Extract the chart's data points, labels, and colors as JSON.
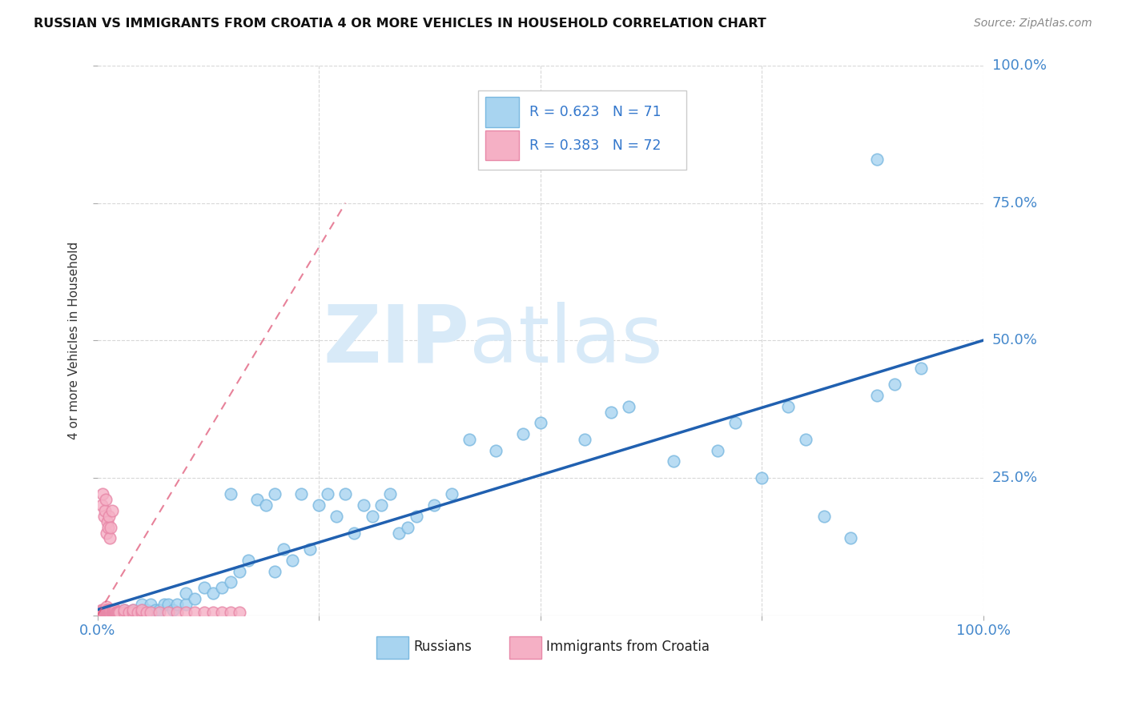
{
  "title": "RUSSIAN VS IMMIGRANTS FROM CROATIA 4 OR MORE VEHICLES IN HOUSEHOLD CORRELATION CHART",
  "source": "Source: ZipAtlas.com",
  "ylabel": "4 or more Vehicles in Household",
  "legend_R_blue": "R = 0.623",
  "legend_N_blue": "N = 71",
  "legend_R_pink": "R = 0.383",
  "legend_N_pink": "N = 72",
  "legend_label_blue": "Russians",
  "legend_label_pink": "Immigrants from Croatia",
  "watermark_zip": "ZIP",
  "watermark_atlas": "atlas",
  "blue_scatter_color": "#a8d4f0",
  "blue_scatter_edge": "#7ab8e0",
  "pink_scatter_color": "#f5b0c5",
  "pink_scatter_edge": "#e888a8",
  "blue_line_color": "#2060b0",
  "pink_line_color": "#e05878",
  "grid_color": "#d8d8d8",
  "tick_color": "#4488cc",
  "title_color": "#111111",
  "source_color": "#888888",
  "ylabel_color": "#333333",
  "legend_text_color": "#3377cc",
  "watermark_color": "#d8eaf8",
  "xlim": [
    0.0,
    1.0
  ],
  "ylim": [
    0.0,
    1.0
  ],
  "xtick_positions": [
    0.0,
    0.25,
    0.5,
    0.75,
    1.0
  ],
  "xtick_labels_show": [
    "0.0%",
    "",
    "",
    "",
    "100.0%"
  ],
  "ytick_positions": [
    0.0,
    0.25,
    0.5,
    0.75,
    1.0
  ],
  "ytick_labels_show": [
    "",
    "25.0%",
    "50.0%",
    "75.0%",
    "100.0%"
  ],
  "blue_x": [
    0.01,
    0.015,
    0.02,
    0.02,
    0.025,
    0.03,
    0.03,
    0.035,
    0.04,
    0.04,
    0.05,
    0.05,
    0.055,
    0.06,
    0.065,
    0.07,
    0.075,
    0.08,
    0.085,
    0.09,
    0.1,
    0.1,
    0.11,
    0.12,
    0.13,
    0.14,
    0.15,
    0.15,
    0.16,
    0.17,
    0.18,
    0.19,
    0.2,
    0.2,
    0.21,
    0.22,
    0.23,
    0.24,
    0.25,
    0.26,
    0.27,
    0.28,
    0.29,
    0.3,
    0.31,
    0.32,
    0.33,
    0.34,
    0.35,
    0.36,
    0.38,
    0.4,
    0.42,
    0.45,
    0.48,
    0.5,
    0.55,
    0.58,
    0.6,
    0.65,
    0.7,
    0.72,
    0.75,
    0.78,
    0.8,
    0.82,
    0.85,
    0.88,
    0.9,
    0.93,
    0.88
  ],
  "blue_y": [
    0.01,
    0.005,
    0.005,
    0.01,
    0.005,
    0.005,
    0.01,
    0.005,
    0.01,
    0.005,
    0.01,
    0.02,
    0.01,
    0.02,
    0.01,
    0.01,
    0.02,
    0.02,
    0.01,
    0.02,
    0.02,
    0.04,
    0.03,
    0.05,
    0.04,
    0.05,
    0.06,
    0.22,
    0.08,
    0.1,
    0.21,
    0.2,
    0.08,
    0.22,
    0.12,
    0.1,
    0.22,
    0.12,
    0.2,
    0.22,
    0.18,
    0.22,
    0.15,
    0.2,
    0.18,
    0.2,
    0.22,
    0.15,
    0.16,
    0.18,
    0.2,
    0.22,
    0.32,
    0.3,
    0.33,
    0.35,
    0.32,
    0.37,
    0.38,
    0.28,
    0.3,
    0.35,
    0.25,
    0.38,
    0.32,
    0.18,
    0.14,
    0.4,
    0.42,
    0.45,
    0.83
  ],
  "pink_x": [
    0.003,
    0.004,
    0.005,
    0.005,
    0.006,
    0.006,
    0.007,
    0.007,
    0.008,
    0.008,
    0.009,
    0.009,
    0.01,
    0.01,
    0.01,
    0.011,
    0.011,
    0.012,
    0.012,
    0.013,
    0.013,
    0.014,
    0.014,
    0.015,
    0.015,
    0.016,
    0.016,
    0.017,
    0.017,
    0.018,
    0.018,
    0.019,
    0.019,
    0.02,
    0.02,
    0.021,
    0.022,
    0.023,
    0.024,
    0.025,
    0.03,
    0.03,
    0.035,
    0.04,
    0.04,
    0.045,
    0.05,
    0.05,
    0.055,
    0.06,
    0.07,
    0.08,
    0.09,
    0.1,
    0.11,
    0.12,
    0.13,
    0.14,
    0.15,
    0.16,
    0.005,
    0.006,
    0.007,
    0.008,
    0.009,
    0.01,
    0.011,
    0.012,
    0.013,
    0.014,
    0.015,
    0.016
  ],
  "pink_y": [
    0.005,
    0.004,
    0.005,
    0.01,
    0.005,
    0.01,
    0.005,
    0.01,
    0.005,
    0.01,
    0.005,
    0.01,
    0.005,
    0.01,
    0.015,
    0.005,
    0.01,
    0.005,
    0.01,
    0.005,
    0.01,
    0.005,
    0.01,
    0.005,
    0.01,
    0.005,
    0.01,
    0.005,
    0.01,
    0.005,
    0.01,
    0.005,
    0.01,
    0.005,
    0.01,
    0.005,
    0.005,
    0.005,
    0.005,
    0.005,
    0.005,
    0.01,
    0.005,
    0.005,
    0.01,
    0.005,
    0.005,
    0.01,
    0.005,
    0.005,
    0.005,
    0.005,
    0.005,
    0.005,
    0.005,
    0.005,
    0.005,
    0.005,
    0.005,
    0.005,
    0.2,
    0.22,
    0.18,
    0.19,
    0.21,
    0.15,
    0.17,
    0.16,
    0.18,
    0.14,
    0.16,
    0.19
  ],
  "blue_line_x": [
    0.0,
    1.0
  ],
  "blue_line_y": [
    0.01,
    0.5
  ],
  "pink_line_x": [
    0.0,
    0.28
  ],
  "pink_line_y": [
    0.0,
    0.75
  ]
}
